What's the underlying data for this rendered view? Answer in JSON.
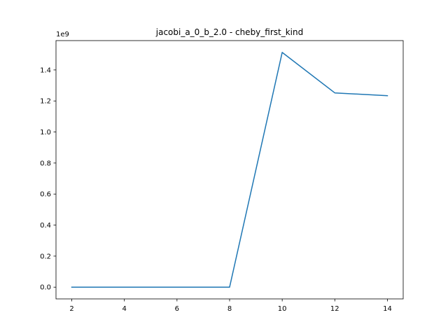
{
  "chart_data": {
    "type": "line",
    "title": "jacobi_a_0_b_2.0 - cheby_first_kind",
    "xlabel": "",
    "ylabel": "",
    "y_offset_label": "1e9",
    "x": [
      2,
      4,
      6,
      8,
      10,
      12,
      14
    ],
    "series": [
      {
        "values": [
          0.0,
          0.0,
          0.0,
          0.0,
          1.513,
          1.252,
          1.234
        ],
        "color": "#1f77b4"
      }
    ],
    "xlim": [
      1.4,
      14.6
    ],
    "ylim": [
      -0.0757,
      1.589
    ],
    "x_ticks": [
      2,
      4,
      6,
      8,
      10,
      12,
      14
    ],
    "x_tick_labels": [
      "2",
      "4",
      "6",
      "8",
      "10",
      "12",
      "14"
    ],
    "y_ticks": [
      0.0,
      0.2,
      0.4,
      0.6,
      0.8,
      1.0,
      1.2,
      1.4
    ],
    "y_tick_labels": [
      "0.0",
      "0.2",
      "0.4",
      "0.6",
      "0.8",
      "1.0",
      "1.2",
      "1.4"
    ],
    "grid": false,
    "legend": "none"
  }
}
